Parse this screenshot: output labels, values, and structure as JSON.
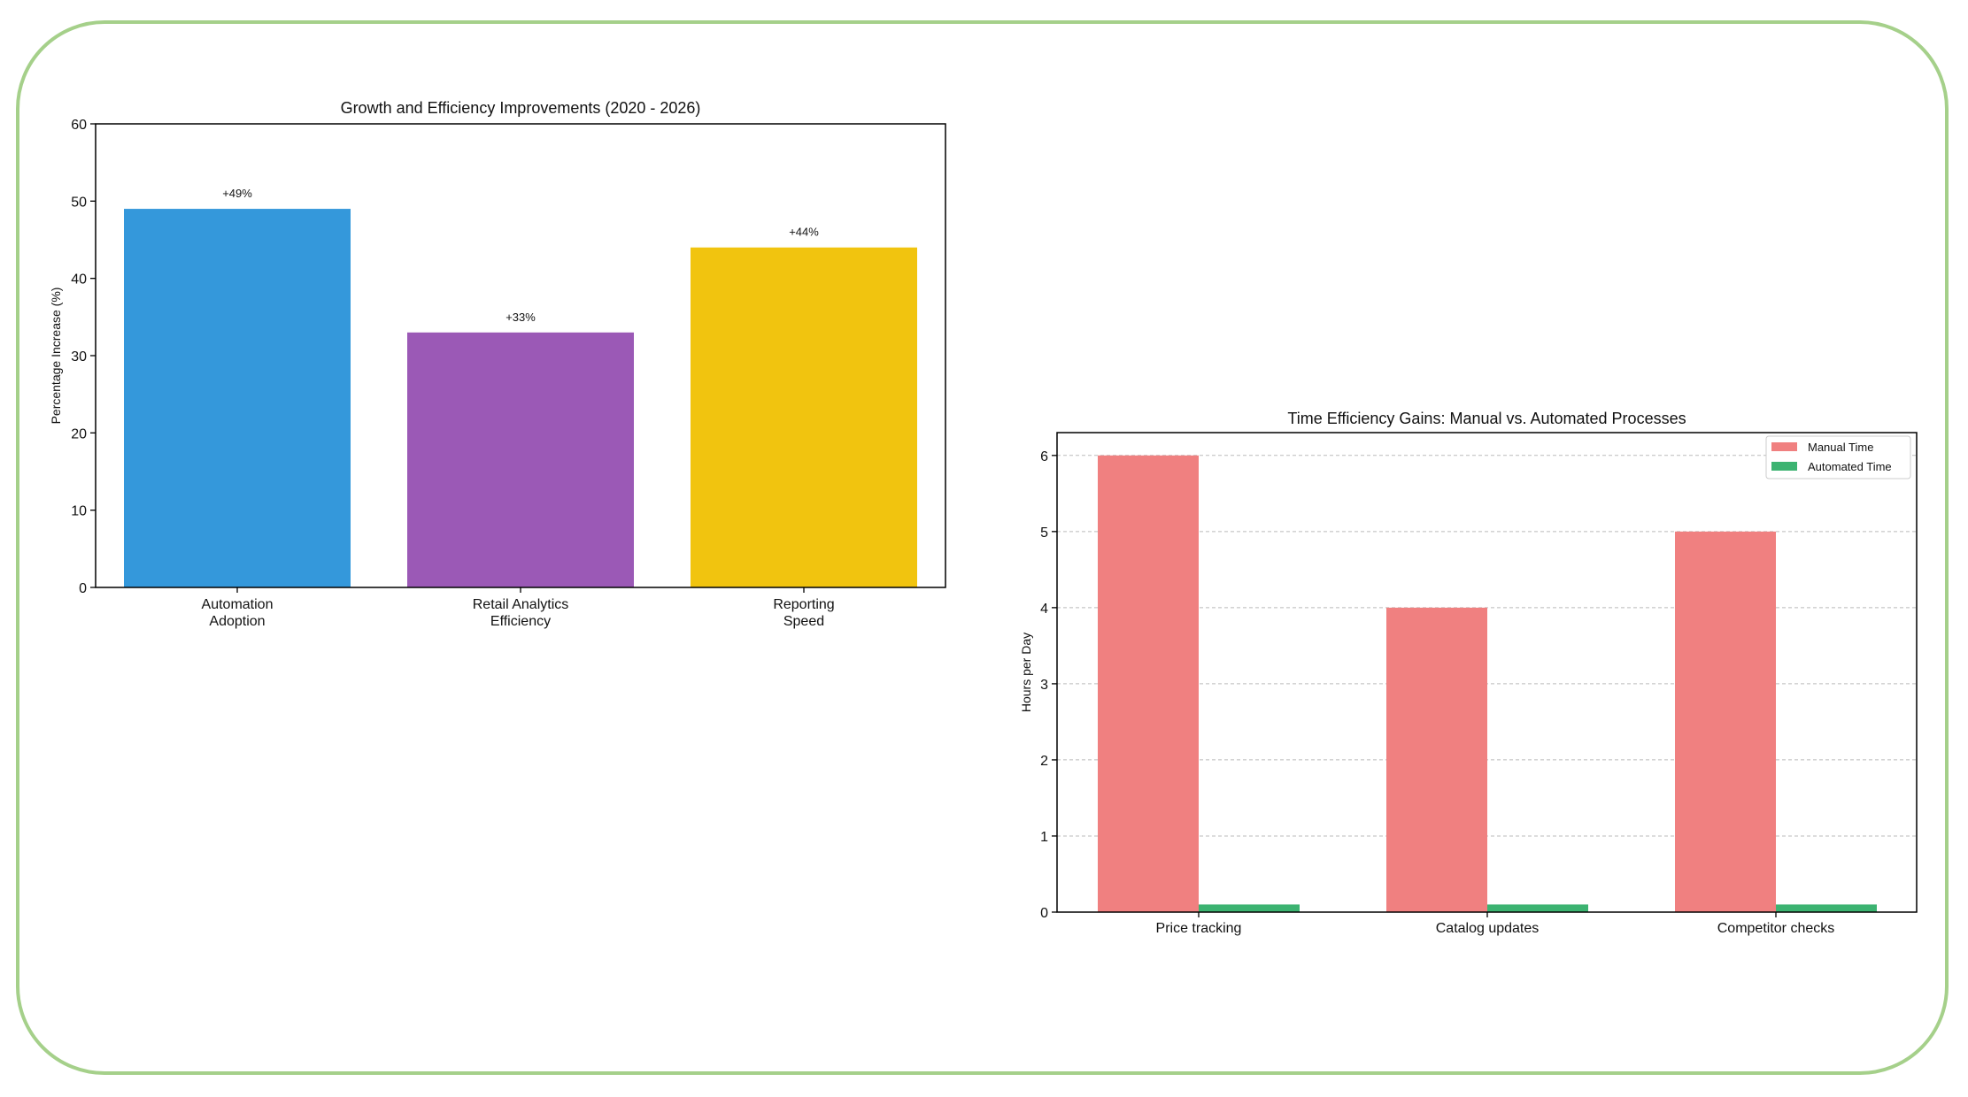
{
  "frame": {
    "border_color": "#a5d08a"
  },
  "chart_data": [
    {
      "type": "bar",
      "title": "Growth and Efficiency Improvements (2020 - 2026)",
      "xlabel": "",
      "ylabel": "Percentage Increase (%)",
      "categories": [
        [
          "Automation",
          "Adoption"
        ],
        [
          "Retail Analytics",
          "Efficiency"
        ],
        [
          "Reporting",
          "Speed"
        ]
      ],
      "values": [
        49,
        33,
        44
      ],
      "data_labels": [
        "+49%",
        "+33%",
        "+44%"
      ],
      "colors": [
        "#3498db",
        "#9b59b6",
        "#f1c40f"
      ],
      "ylim": [
        0,
        60
      ],
      "yticks": [
        0,
        10,
        20,
        30,
        40,
        50,
        60
      ],
      "grid": false
    },
    {
      "type": "bar",
      "title": "Time Efficiency Gains: Manual vs. Automated Processes",
      "xlabel": "",
      "ylabel": "Hours per Day",
      "categories": [
        "Price tracking",
        "Catalog updates",
        "Competitor checks"
      ],
      "series": [
        {
          "name": "Manual Time",
          "values": [
            6,
            4,
            5
          ],
          "color": "#f08080"
        },
        {
          "name": "Automated Time",
          "values": [
            0.1,
            0.1,
            0.1
          ],
          "color": "#3cb371"
        }
      ],
      "ylim": [
        0,
        6.3
      ],
      "yticks": [
        0,
        1,
        2,
        3,
        4,
        5,
        6
      ],
      "grid": true,
      "legend": "top-right"
    }
  ]
}
